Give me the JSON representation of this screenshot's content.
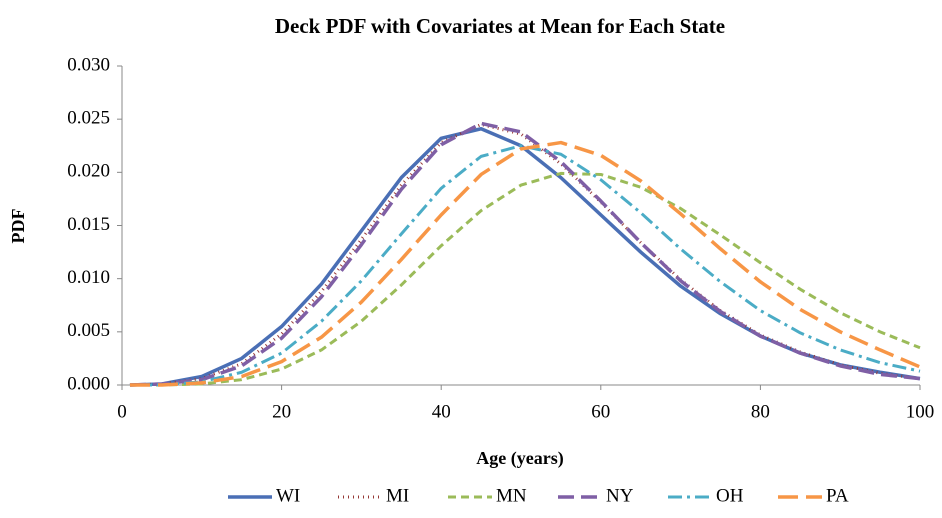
{
  "chart_data": {
    "type": "line",
    "title": "Deck PDF with Covariates at Mean for Each State",
    "x_label": "Age (years)",
    "y_label": "PDF",
    "x": [
      1,
      5,
      10,
      15,
      20,
      25,
      30,
      35,
      40,
      45,
      50,
      55,
      60,
      65,
      70,
      75,
      80,
      85,
      90,
      95,
      100
    ],
    "xlim": [
      0,
      100
    ],
    "xticks": [
      0,
      20,
      40,
      60,
      80,
      100
    ],
    "ylim": [
      0,
      0.03
    ],
    "yticks": [
      {
        "value": 0,
        "label": "0.000"
      },
      {
        "value": 0.005,
        "label": "0.005"
      },
      {
        "value": 0.01,
        "label": "0.010"
      },
      {
        "value": 0.015,
        "label": "0.015"
      },
      {
        "value": 0.02,
        "label": "0.020"
      },
      {
        "value": 0.025,
        "label": "0.025"
      },
      {
        "value": 0.03,
        "label": "0.030"
      }
    ],
    "grid": false,
    "legend": "bottom",
    "series": [
      {
        "name": "WI",
        "color": "#4a6fb5",
        "dash": "",
        "width": 3.5,
        "values": [
          0,
          0.0001,
          0.0008,
          0.0025,
          0.0055,
          0.0095,
          0.0145,
          0.0195,
          0.0232,
          0.0241,
          0.0225,
          0.0195,
          0.016,
          0.0125,
          0.0093,
          0.0067,
          0.0046,
          0.003,
          0.0019,
          0.0012,
          0.0006
        ]
      },
      {
        "name": "MI",
        "color": "#953735",
        "dash": "1 4",
        "width": 3,
        "values": [
          0,
          0.0001,
          0.0006,
          0.002,
          0.0048,
          0.0088,
          0.0137,
          0.0188,
          0.0228,
          0.0245,
          0.0236,
          0.0208,
          0.0172,
          0.0134,
          0.0099,
          0.007,
          0.0047,
          0.0031,
          0.0019,
          0.0011,
          0.0006
        ]
      },
      {
        "name": "MN",
        "color": "#9bbb59",
        "dash": "8 5",
        "width": 3,
        "values": [
          0,
          0,
          0.0001,
          0.0005,
          0.0015,
          0.0033,
          0.006,
          0.0094,
          0.0131,
          0.0164,
          0.0188,
          0.0199,
          0.0198,
          0.0186,
          0.0166,
          0.0141,
          0.0115,
          0.009,
          0.0068,
          0.005,
          0.0035
        ]
      },
      {
        "name": "NY",
        "color": "#7f5fa5",
        "dash": "16 7",
        "width": 3.5,
        "values": [
          0,
          0.0001,
          0.0005,
          0.0018,
          0.0044,
          0.0083,
          0.0132,
          0.0184,
          0.0226,
          0.0246,
          0.0238,
          0.021,
          0.0173,
          0.0134,
          0.0098,
          0.0069,
          0.0046,
          0.003,
          0.0018,
          0.001,
          0.0006
        ]
      },
      {
        "name": "OH",
        "color": "#4bacc6",
        "dash": "14 5 3 5",
        "width": 3,
        "values": [
          0,
          0,
          0.0003,
          0.0012,
          0.003,
          0.006,
          0.0098,
          0.0142,
          0.0185,
          0.0215,
          0.0225,
          0.0217,
          0.0193,
          0.0162,
          0.0128,
          0.0097,
          0.007,
          0.0049,
          0.0033,
          0.0021,
          0.0013
        ]
      },
      {
        "name": "PA",
        "color": "#f79646",
        "dash": "20 8",
        "width": 3.5,
        "values": [
          0,
          0,
          0.0002,
          0.0008,
          0.0022,
          0.0045,
          0.0078,
          0.0118,
          0.016,
          0.0198,
          0.0222,
          0.0228,
          0.0216,
          0.0192,
          0.0161,
          0.0128,
          0.0097,
          0.0071,
          0.005,
          0.0033,
          0.0017
        ]
      }
    ]
  }
}
